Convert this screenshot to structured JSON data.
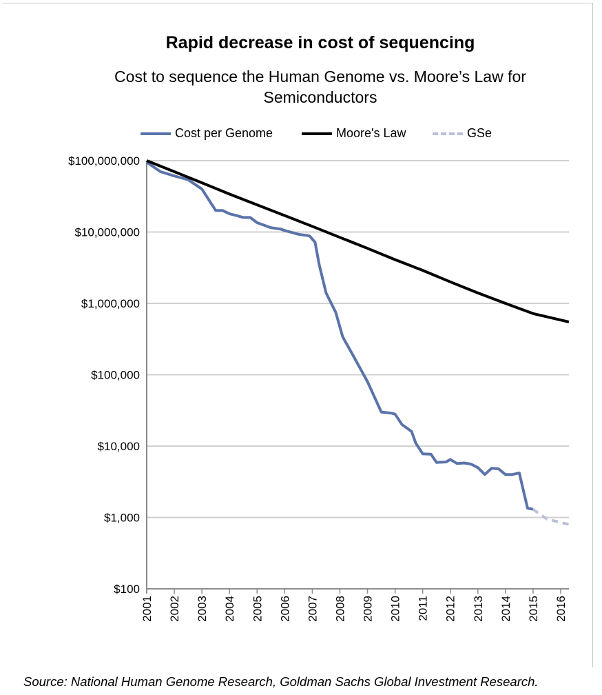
{
  "title": "Rapid decrease in cost of sequencing",
  "subtitle": "Cost to sequence the Human Genome vs. Moore’s Law for Semiconductors",
  "source": "Source: National Human Genome Research, Goldman Sachs Global Investment Research.",
  "colors": {
    "cost_per_genome": "#5b73aa",
    "moores_law": "#000000",
    "gse": "#b8c0dc",
    "grid": "#d0d0d0",
    "axis": "#8c8c8c"
  },
  "chart_data": {
    "type": "line",
    "title": "Rapid decrease in cost of sequencing",
    "subtitle": "Cost to sequence the Human Genome vs. Moore’s Law for Semiconductors",
    "xlabel": "",
    "ylabel": "",
    "y_scale": "log",
    "ylim": [
      100,
      100000000
    ],
    "xlim": [
      2001,
      2016.3
    ],
    "grid": true,
    "legend_position": "top",
    "x_ticks": [
      "2001",
      "2002",
      "2003",
      "2004",
      "2005",
      "2006",
      "2007",
      "2008",
      "2009",
      "2010",
      "2011",
      "2012",
      "2013",
      "2014",
      "2015",
      "2016"
    ],
    "y_ticks": [
      {
        "value": 100,
        "label": "$100"
      },
      {
        "value": 1000,
        "label": "$1,000"
      },
      {
        "value": 10000,
        "label": "$10,000"
      },
      {
        "value": 100000,
        "label": "$100,000"
      },
      {
        "value": 1000000,
        "label": "$1,000,000"
      },
      {
        "value": 10000000,
        "label": "$10,000,000"
      },
      {
        "value": 100000000,
        "label": "$100,000,000"
      }
    ],
    "series": [
      {
        "name": "Cost per Genome",
        "style": "solid",
        "points": [
          [
            2001.0,
            95000000
          ],
          [
            2001.5,
            70000000
          ],
          [
            2002.0,
            61000000
          ],
          [
            2002.5,
            54000000
          ],
          [
            2003.0,
            40000000
          ],
          [
            2003.5,
            20000000
          ],
          [
            2003.75,
            20000000
          ],
          [
            2004.0,
            18000000
          ],
          [
            2004.25,
            17000000
          ],
          [
            2004.5,
            16000000
          ],
          [
            2004.75,
            16000000
          ],
          [
            2005.0,
            13500000
          ],
          [
            2005.5,
            11500000
          ],
          [
            2005.85,
            11000000
          ],
          [
            2006.0,
            10500000
          ],
          [
            2006.5,
            9300000
          ],
          [
            2006.75,
            9000000
          ],
          [
            2006.9,
            8800000
          ],
          [
            2007.1,
            7200000
          ],
          [
            2007.25,
            3500000
          ],
          [
            2007.5,
            1400000
          ],
          [
            2007.85,
            750000
          ],
          [
            2008.1,
            340000
          ],
          [
            2008.5,
            180000
          ],
          [
            2008.75,
            120000
          ],
          [
            2009.0,
            80000
          ],
          [
            2009.5,
            30000
          ],
          [
            2009.85,
            29000
          ],
          [
            2010.0,
            28000
          ],
          [
            2010.25,
            20000
          ],
          [
            2010.6,
            16000
          ],
          [
            2010.75,
            11000
          ],
          [
            2011.0,
            7800
          ],
          [
            2011.3,
            7700
          ],
          [
            2011.5,
            5900
          ],
          [
            2011.85,
            6000
          ],
          [
            2012.0,
            6500
          ],
          [
            2012.25,
            5700
          ],
          [
            2012.5,
            5800
          ],
          [
            2012.75,
            5600
          ],
          [
            2013.0,
            5000
          ],
          [
            2013.25,
            4000
          ],
          [
            2013.5,
            4900
          ],
          [
            2013.75,
            4800
          ],
          [
            2014.0,
            4000
          ],
          [
            2014.25,
            4000
          ],
          [
            2014.5,
            4200
          ],
          [
            2014.8,
            1350
          ],
          [
            2015.0,
            1300
          ]
        ]
      },
      {
        "name": "Moore's Law",
        "style": "solid",
        "points": [
          [
            2001.0,
            100000000
          ],
          [
            2002.0,
            70000000
          ],
          [
            2003.0,
            49000000
          ],
          [
            2004.0,
            34000000
          ],
          [
            2005.0,
            24000000
          ],
          [
            2006.0,
            17000000
          ],
          [
            2007.0,
            12000000
          ],
          [
            2008.0,
            8400000
          ],
          [
            2009.0,
            5900000
          ],
          [
            2010.0,
            4100000
          ],
          [
            2011.0,
            2900000
          ],
          [
            2012.0,
            2000000
          ],
          [
            2013.0,
            1400000
          ],
          [
            2014.0,
            1000000
          ],
          [
            2015.0,
            720000
          ],
          [
            2016.3,
            550000
          ]
        ]
      },
      {
        "name": "GSe",
        "style": "dashed",
        "points": [
          [
            2015.0,
            1300
          ],
          [
            2015.5,
            950
          ],
          [
            2016.0,
            850
          ],
          [
            2016.3,
            800
          ]
        ]
      }
    ]
  }
}
